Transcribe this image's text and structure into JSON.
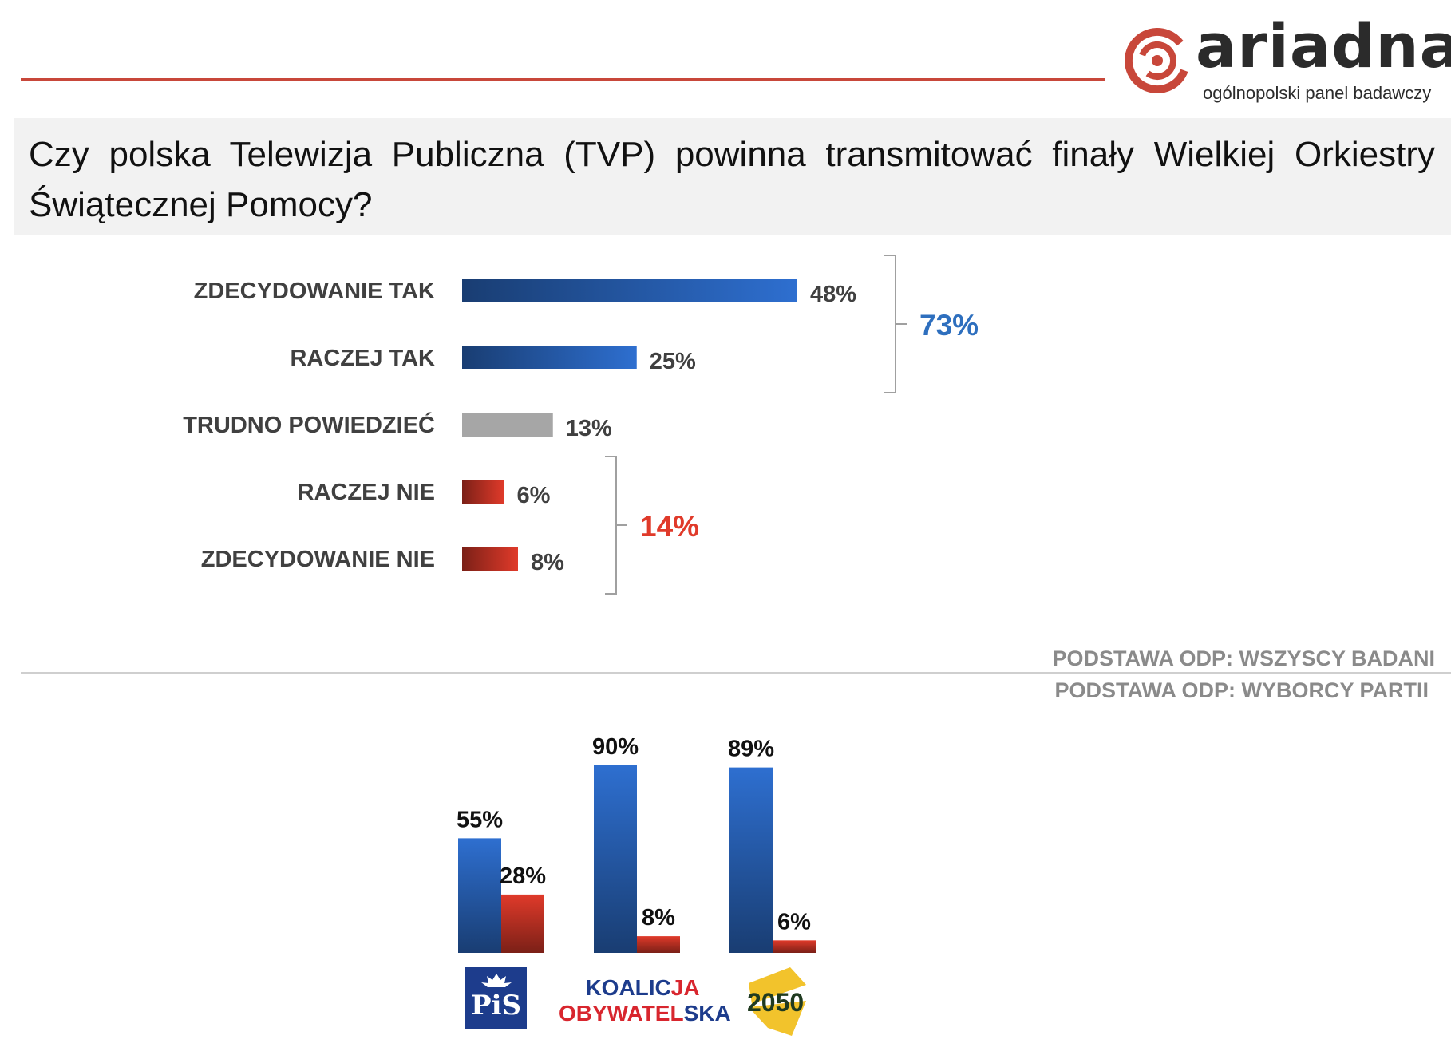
{
  "header": {
    "logo_name": "ariadna",
    "logo_tagline": "ogólnopolski panel badawczy",
    "brand_color": "#c8473a"
  },
  "question": "Czy polska Telewizja Publiczna (TVP) powinna transmitować finały Wielkiej Orkiestry Świątecznej Pomocy?",
  "chart_data": [
    {
      "type": "bar",
      "orientation": "horizontal",
      "categories": [
        "ZDECYDOWANIE TAK",
        "RACZEJ TAK",
        "TRUDNO POWIEDZIEĆ",
        "RACZEJ NIE",
        "ZDECYDOWANIE NIE"
      ],
      "values": [
        48,
        25,
        13,
        6,
        8
      ],
      "value_labels": [
        "48%",
        "25%",
        "13%",
        "6%",
        "8%"
      ],
      "colors": [
        "#2e6fd0",
        "#2e6fd0",
        "#a6a6a6",
        "#e03a2a",
        "#e03a2a"
      ],
      "brackets": [
        {
          "covers": [
            "ZDECYDOWANIE TAK",
            "RACZEJ TAK"
          ],
          "label": "73%",
          "color": "#2e6fbe"
        },
        {
          "covers": [
            "RACZEJ NIE",
            "ZDECYDOWANIE NIE"
          ],
          "label": "14%",
          "color": "#e03a2a"
        }
      ],
      "base_note": "PODSTAWA ODP: WSZYSCY BADANI"
    },
    {
      "type": "bar",
      "categories": [
        "PiS",
        "KOALICJA OBYWATELSKA",
        "2050"
      ],
      "series": [
        {
          "values": [
            55,
            90,
            89
          ],
          "labels": [
            "55%",
            "90%",
            "89%"
          ],
          "color": "#2e6fd0"
        },
        {
          "values": [
            28,
            8,
            6
          ],
          "labels": [
            "28%",
            "8%",
            "6%"
          ],
          "color": "#e03a2a"
        }
      ],
      "ylim": [
        0,
        100
      ],
      "base_note": "PODSTAWA ODP: WYBORCY PARTII"
    }
  ],
  "party_logos": {
    "pis": "PiS",
    "ko_line1_a": "KOALIC",
    "ko_line1_b": "JA",
    "ko_line2_a": "OBYWATEL",
    "ko_line2_b": "SKA",
    "p2050": "2050"
  }
}
